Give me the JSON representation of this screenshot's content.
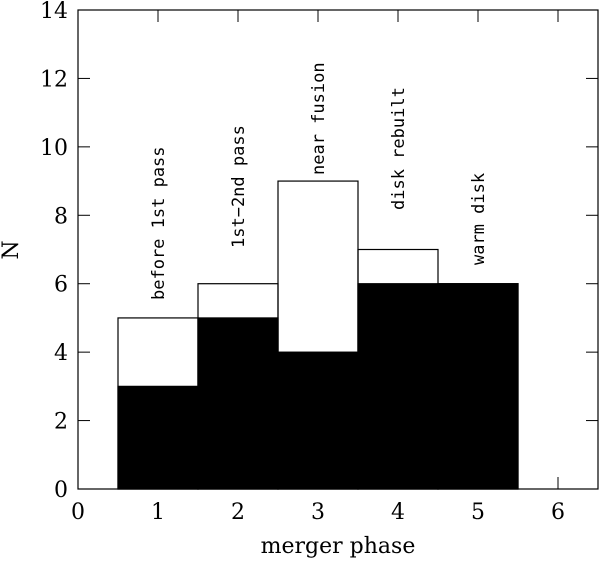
{
  "chart_data": {
    "type": "histogram",
    "xlabel": "merger phase",
    "ylabel": "N",
    "bins": [
      0.5,
      1.5,
      2.5,
      3.5,
      4.5,
      5.5
    ],
    "series": [
      {
        "color": "#000000",
        "filled": false,
        "values": [
          5,
          6,
          9,
          7,
          6
        ]
      },
      {
        "color": "#000000",
        "filled": true,
        "values": [
          3,
          5,
          4,
          6,
          6
        ]
      }
    ],
    "annotations": [
      "before 1st pass",
      "1st−2nd pass",
      "near fusion",
      "disk rebuilt",
      "warm disk"
    ],
    "xlim": [
      0,
      6.5
    ],
    "ylim": [
      0,
      14
    ],
    "xticks": [
      0,
      1,
      2,
      3,
      4,
      5,
      6
    ],
    "yticks": [
      0,
      2,
      4,
      6,
      8,
      10,
      12,
      14
    ]
  }
}
